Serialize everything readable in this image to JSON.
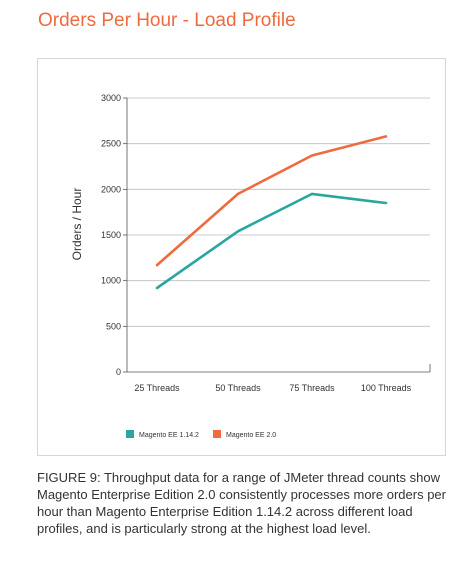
{
  "caption": "FIGURE 9: Throughput data for a range of JMeter thread counts show Magento Enterprise Edition 2.0 consistently processes more orders per hour than Magento Enterprise Edition 1.14.2 across different load profiles, and is particularly strong at the highest load level.",
  "colors": {
    "title": "#ef6a3e",
    "series_1": "#2aa5a0",
    "series_2": "#ef6a3e",
    "grid": "#bdbdbd",
    "text": "#333333"
  },
  "chart_data": {
    "type": "line",
    "title": "Orders Per Hour - Load Profile",
    "xlabel": "",
    "ylabel": "Orders / Hour",
    "categories": [
      "25 Threads",
      "50 Threads",
      "75 Threads",
      "100 Threads"
    ],
    "ylim": [
      0,
      3000
    ],
    "yticks": [
      "0",
      "500",
      "1000",
      "1500",
      "2000",
      "2500",
      "3000"
    ],
    "grid": true,
    "legend_position": "bottom-left",
    "series": [
      {
        "name": "Magento EE 1.14.2",
        "color": "#2aa5a0",
        "values": [
          920,
          1540,
          1950,
          1850
        ]
      },
      {
        "name": "Magento EE 2.0",
        "color": "#ef6a3e",
        "values": [
          1170,
          1950,
          2370,
          2580
        ]
      }
    ]
  }
}
